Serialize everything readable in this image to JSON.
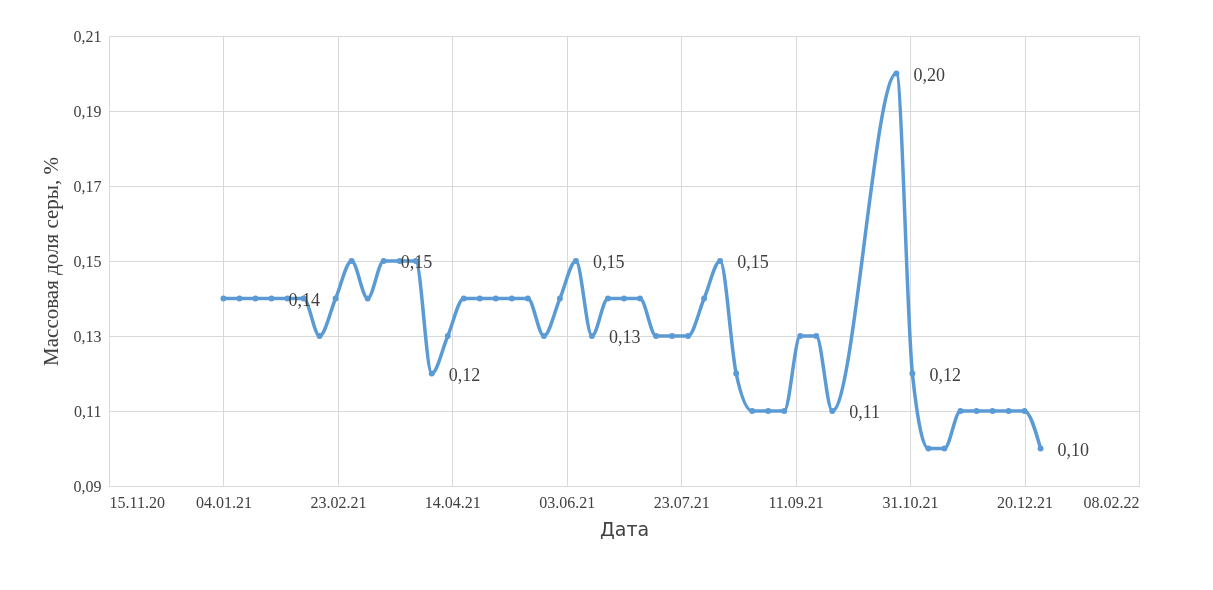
{
  "chart_data": {
    "type": "line",
    "xlabel": "Дата",
    "ylabel": "Массовая доля серы, %",
    "x": [
      "2021-01-04",
      "2021-01-11",
      "2021-01-18",
      "2021-01-25",
      "2021-02-01",
      "2021-02-08",
      "2021-02-15",
      "2021-02-22",
      "2021-03-01",
      "2021-03-08",
      "2021-03-15",
      "2021-03-22",
      "2021-03-29",
      "2021-04-05",
      "2021-04-12",
      "2021-04-19",
      "2021-04-26",
      "2021-05-03",
      "2021-05-10",
      "2021-05-17",
      "2021-05-24",
      "2021-05-31",
      "2021-06-07",
      "2021-06-14",
      "2021-06-21",
      "2021-06-28",
      "2021-07-05",
      "2021-07-12",
      "2021-07-19",
      "2021-07-26",
      "2021-08-02",
      "2021-08-09",
      "2021-08-16",
      "2021-08-23",
      "2021-08-30",
      "2021-09-06",
      "2021-09-13",
      "2021-09-20",
      "2021-09-27",
      "2021-10-25",
      "2021-11-01",
      "2021-11-08",
      "2021-11-15",
      "2021-11-22",
      "2021-11-29",
      "2021-12-06",
      "2021-12-13",
      "2021-12-20",
      "2021-12-27"
    ],
    "series": [
      {
        "color": "#5b9bd5",
        "values": [
          0.14,
          0.14,
          0.14,
          0.14,
          0.14,
          0.14,
          0.13,
          0.14,
          0.15,
          0.14,
          0.15,
          0.15,
          0.15,
          0.12,
          0.13,
          0.14,
          0.14,
          0.14,
          0.14,
          0.14,
          0.13,
          0.14,
          0.15,
          0.13,
          0.14,
          0.14,
          0.14,
          0.13,
          0.13,
          0.13,
          0.14,
          0.15,
          0.12,
          0.11,
          0.11,
          0.11,
          0.13,
          0.13,
          0.11,
          0.2,
          0.12,
          0.1,
          0.1,
          0.11,
          0.11,
          0.11,
          0.11,
          0.11,
          0.1
        ],
        "value_labels": [
          null,
          null,
          null,
          "0,14",
          null,
          null,
          null,
          null,
          null,
          null,
          "0,15",
          null,
          null,
          "0,12",
          null,
          null,
          null,
          null,
          null,
          null,
          null,
          null,
          "0,15",
          "0,13",
          null,
          null,
          null,
          null,
          null,
          null,
          null,
          "0,15",
          null,
          null,
          null,
          null,
          null,
          null,
          "0,11",
          "0,20",
          "0,12",
          null,
          null,
          null,
          null,
          null,
          null,
          null,
          "0,10"
        ]
      }
    ],
    "xlim": [
      "2020-11-15",
      "2022-02-08"
    ],
    "xticks": [
      {
        "value": "2020-11-15",
        "label": "15.11.20"
      },
      {
        "value": "2021-01-04",
        "label": "04.01.21"
      },
      {
        "value": "2021-02-23",
        "label": "23.02.21"
      },
      {
        "value": "2021-04-14",
        "label": "14.04.21"
      },
      {
        "value": "2021-06-03",
        "label": "03.06.21"
      },
      {
        "value": "2021-07-23",
        "label": "23.07.21"
      },
      {
        "value": "2021-09-11",
        "label": "11.09.21"
      },
      {
        "value": "2021-10-31",
        "label": "31.10.21"
      },
      {
        "value": "2021-12-20",
        "label": "20.12.21"
      },
      {
        "value": "2022-02-08",
        "label": "08.02.22"
      }
    ],
    "ylim": [
      0.09,
      0.21
    ],
    "yticks": [
      {
        "value": 0.09,
        "label": "0,09"
      },
      {
        "value": 0.11,
        "label": "0,11"
      },
      {
        "value": 0.13,
        "label": "0,13"
      },
      {
        "value": 0.15,
        "label": "0,15"
      },
      {
        "value": 0.17,
        "label": "0,17"
      },
      {
        "value": 0.19,
        "label": "0,19"
      },
      {
        "value": 0.21,
        "label": "0,21"
      }
    ],
    "grid": true,
    "marker": "circle",
    "line_style": "solid"
  }
}
